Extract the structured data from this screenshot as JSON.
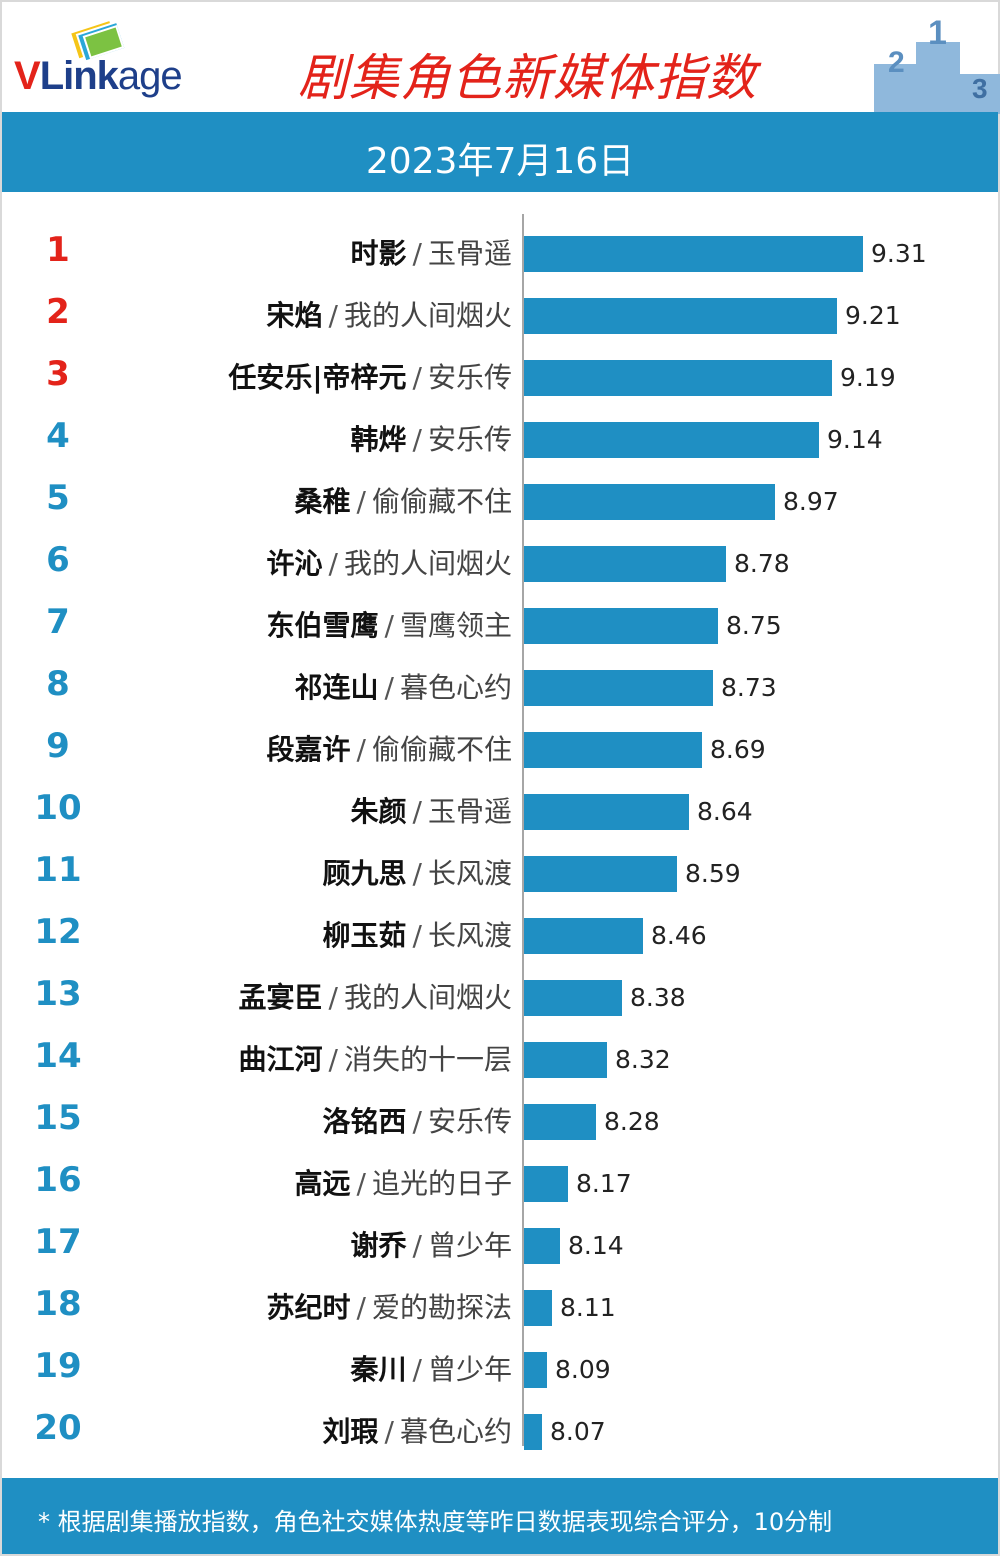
{
  "brand": {
    "logo_text_v": "V",
    "logo_text_link": "Link",
    "logo_text_age": "age"
  },
  "header": {
    "title": "剧集角色新媒体指数",
    "date": "2023年7月16日"
  },
  "colors": {
    "accent": "#1f8fc3",
    "top3": "#e3231a",
    "title": "#e3231a"
  },
  "chart_data": {
    "type": "bar",
    "orientation": "horizontal",
    "title": "剧集角色新媒体指数",
    "subtitle": "2023年7月16日",
    "xlim": [
      8.0,
      9.4
    ],
    "rows": [
      {
        "rank": "1",
        "character": "时影",
        "drama": "玉骨遥",
        "value": 9.31,
        "value_label": "9.31"
      },
      {
        "rank": "2",
        "character": "宋焰",
        "drama": "我的人间烟火",
        "value": 9.21,
        "value_label": "9.21"
      },
      {
        "rank": "3",
        "character": "任安乐|帝梓元",
        "drama": "安乐传",
        "value": 9.19,
        "value_label": "9.19"
      },
      {
        "rank": "4",
        "character": "韩烨",
        "drama": "安乐传",
        "value": 9.14,
        "value_label": "9.14"
      },
      {
        "rank": "5",
        "character": "桑稚",
        "drama": "偷偷藏不住",
        "value": 8.97,
        "value_label": "8.97"
      },
      {
        "rank": "6",
        "character": "许沁",
        "drama": "我的人间烟火",
        "value": 8.78,
        "value_label": "8.78"
      },
      {
        "rank": "7",
        "character": "东伯雪鹰",
        "drama": "雪鹰领主",
        "value": 8.75,
        "value_label": "8.75"
      },
      {
        "rank": "8",
        "character": "祁连山",
        "drama": "暮色心约",
        "value": 8.73,
        "value_label": "8.73"
      },
      {
        "rank": "9",
        "character": "段嘉许",
        "drama": "偷偷藏不住",
        "value": 8.69,
        "value_label": "8.69"
      },
      {
        "rank": "10",
        "character": "朱颜",
        "drama": "玉骨遥",
        "value": 8.64,
        "value_label": "8.64"
      },
      {
        "rank": "11",
        "character": "顾九思",
        "drama": "长风渡",
        "value": 8.59,
        "value_label": "8.59"
      },
      {
        "rank": "12",
        "character": "柳玉茹",
        "drama": "长风渡",
        "value": 8.46,
        "value_label": "8.46"
      },
      {
        "rank": "13",
        "character": "孟宴臣",
        "drama": "我的人间烟火",
        "value": 8.38,
        "value_label": "8.38"
      },
      {
        "rank": "14",
        "character": "曲江河",
        "drama": "消失的十一层",
        "value": 8.32,
        "value_label": "8.32"
      },
      {
        "rank": "15",
        "character": "洛铭西",
        "drama": "安乐传",
        "value": 8.28,
        "value_label": "8.28"
      },
      {
        "rank": "16",
        "character": "高远",
        "drama": "追光的日子",
        "value": 8.17,
        "value_label": "8.17"
      },
      {
        "rank": "17",
        "character": "谢乔",
        "drama": "曾少年",
        "value": 8.14,
        "value_label": "8.14"
      },
      {
        "rank": "18",
        "character": "苏纪时",
        "drama": "爱的勘探法",
        "value": 8.11,
        "value_label": "8.11"
      },
      {
        "rank": "19",
        "character": "秦川",
        "drama": "曾少年",
        "value": 8.09,
        "value_label": "8.09"
      },
      {
        "rank": "20",
        "character": "刘瑕",
        "drama": "暮色心约",
        "value": 8.07,
        "value_label": "8.07"
      }
    ],
    "separator": "/",
    "footnote": "* 根据剧集播放指数，角色社交媒体热度等昨日数据表现综合评分，10分制"
  }
}
